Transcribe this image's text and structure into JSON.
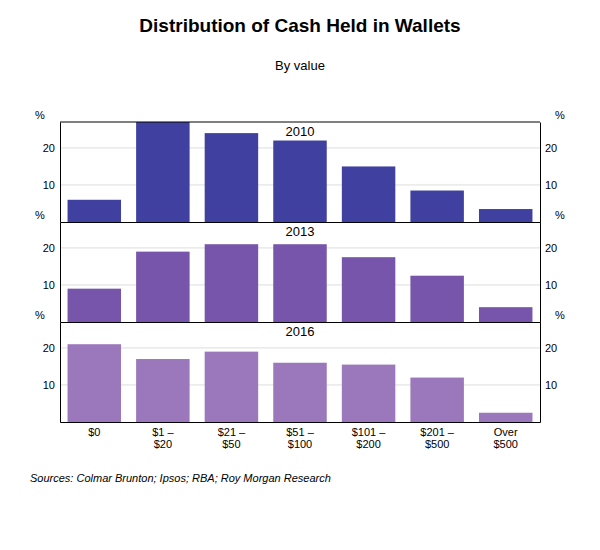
{
  "chart_data": {
    "type": "bar",
    "title": "Distribution of Cash Held in Wallets",
    "subtitle": "By value",
    "categories": [
      "$0",
      "$1 –\n$20",
      "$21 –\n$50",
      "$51 –\n$100",
      "$101 –\n$200",
      "$201 –\n$500",
      "Over\n$500"
    ],
    "series": [
      {
        "name": "2010",
        "color": "#4040a0",
        "values": [
          6,
          27,
          24,
          22,
          15,
          8.5,
          3.5
        ]
      },
      {
        "name": "2013",
        "color": "#7755aa",
        "values": [
          9,
          19,
          21,
          21,
          17.5,
          12.5,
          4
        ]
      },
      {
        "name": "2016",
        "color": "#9b77bb",
        "values": [
          21,
          17,
          19,
          16,
          15.5,
          12,
          2.5
        ]
      }
    ],
    "ylabel": "%",
    "y2label": "%",
    "ylim": [
      0,
      27
    ],
    "yticks": [
      10,
      20
    ],
    "y2lim": [
      0,
      27
    ],
    "y2ticks": [
      10,
      20
    ],
    "grid": true,
    "annotations": [
      "Sources: Colmar Brunton; Ipsos; RBA; Roy Morgan Research"
    ]
  }
}
